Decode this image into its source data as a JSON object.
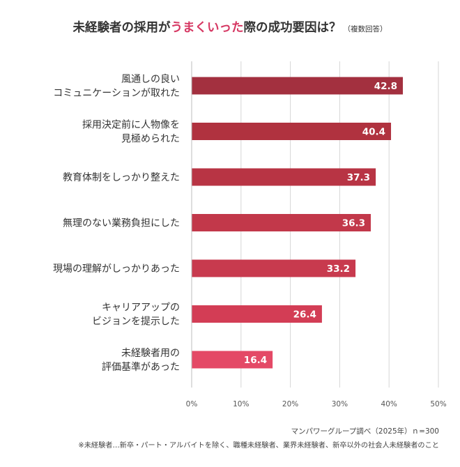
{
  "header": {
    "title_before": "未経験者の採用が",
    "title_highlight": "うまくいった",
    "title_after": "際の成功要因は？",
    "title_sub": "（複数回答）",
    "highlight_color": "#d63863"
  },
  "footer": {
    "source": "マンパワーグループ調べ（2025年）ｎ=300",
    "note": "※未経験者…新卒・パート・アルバイトを除く、職種未経験者、業界未経験者、新卒以外の社会人未経験者のこと"
  },
  "chart_data": {
    "type": "bar",
    "orientation": "horizontal",
    "categories": [
      [
        "風通しの良い",
        "コミュニケーションが取れた"
      ],
      [
        "採用決定前に人物像を",
        "見極められた"
      ],
      [
        "教育体制をしっかり整えた"
      ],
      [
        "無理のない業務負担にした"
      ],
      [
        "現場の理解がしっかりあった"
      ],
      [
        "キャリアアップの",
        "ビジョンを提示した"
      ],
      [
        "未経験者用の",
        "評価基準があった"
      ]
    ],
    "values": [
      42.8,
      40.4,
      37.3,
      36.3,
      33.2,
      26.4,
      16.4
    ],
    "value_labels": [
      "42.8",
      "40.4",
      "37.3",
      "36.3",
      "33.2",
      "26.4",
      "16.4"
    ],
    "bar_colors": [
      "#a3303f",
      "#b0323f",
      "#b83444",
      "#c2384a",
      "#c83a4e",
      "#d33d55",
      "#e44966"
    ],
    "xticks": [
      0,
      10,
      20,
      30,
      40,
      50
    ],
    "xtick_labels": [
      "0%",
      "10%",
      "20%",
      "30%",
      "40%",
      "50%"
    ],
    "xlim": [
      0,
      50
    ],
    "grid": true,
    "legend": "none"
  }
}
